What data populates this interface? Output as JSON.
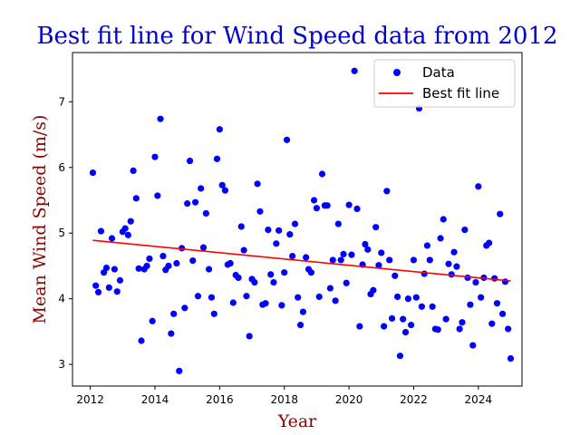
{
  "chart_data": {
    "type": "scatter",
    "title": "Best fit line for Wind Speed data from 2012",
    "xlabel": "Year",
    "ylabel": "Mean Wind Speed (m/s)",
    "xlim": [
      2011.45,
      2025.35
    ],
    "ylim": [
      2.67,
      7.75
    ],
    "x_ticks": [
      "2012",
      "2014",
      "2016",
      "2018",
      "2020",
      "2022",
      "2024"
    ],
    "y_ticks": [
      "3",
      "4",
      "5",
      "6",
      "7"
    ],
    "grid": false,
    "legend_position": "top-right",
    "colors": {
      "data": "#0000ff",
      "fit": "#ff0000",
      "title": "#0000cc",
      "axis_label": "#8b0000"
    },
    "series": [
      {
        "name": "Data",
        "kind": "scatter",
        "x": [
          2012.08,
          2012.17,
          2012.25,
          2012.33,
          2012.42,
          2012.5,
          2012.58,
          2012.67,
          2012.75,
          2012.83,
          2012.92,
          2013.0,
          2013.08,
          2013.17,
          2013.25,
          2013.33,
          2013.42,
          2013.5,
          2013.58,
          2013.67,
          2013.75,
          2013.83,
          2013.92,
          2014.0,
          2014.08,
          2014.17,
          2014.25,
          2014.33,
          2014.42,
          2014.5,
          2014.58,
          2014.67,
          2014.75,
          2014.83,
          2014.92,
          2015.0,
          2015.08,
          2015.17,
          2015.25,
          2015.33,
          2015.42,
          2015.5,
          2015.58,
          2015.67,
          2015.75,
          2015.83,
          2015.92,
          2016.0,
          2016.08,
          2016.17,
          2016.25,
          2016.33,
          2016.42,
          2016.5,
          2016.58,
          2016.67,
          2016.75,
          2016.83,
          2016.92,
          2017.0,
          2017.08,
          2017.17,
          2017.25,
          2017.33,
          2017.42,
          2017.5,
          2017.58,
          2017.67,
          2017.75,
          2017.83,
          2017.92,
          2018.0,
          2018.08,
          2018.17,
          2018.25,
          2018.33,
          2018.42,
          2018.5,
          2018.58,
          2018.67,
          2018.75,
          2018.83,
          2018.92,
          2019.0,
          2019.08,
          2019.17,
          2019.25,
          2019.33,
          2019.42,
          2019.5,
          2019.58,
          2019.67,
          2019.75,
          2019.83,
          2019.92,
          2020.0,
          2020.08,
          2020.17,
          2020.25,
          2020.33,
          2020.42,
          2020.5,
          2020.58,
          2020.67,
          2020.75,
          2020.83,
          2020.92,
          2021.0,
          2021.08,
          2021.17,
          2021.25,
          2021.33,
          2021.42,
          2021.5,
          2021.58,
          2021.67,
          2021.75,
          2021.83,
          2021.92,
          2022.0,
          2022.08,
          2022.17,
          2022.25,
          2022.33,
          2022.42,
          2022.5,
          2022.58,
          2022.67,
          2022.75,
          2022.83,
          2022.92,
          2023.0,
          2023.08,
          2023.17,
          2023.25,
          2023.33,
          2023.42,
          2023.5,
          2023.58,
          2023.67,
          2023.75,
          2023.83,
          2023.92,
          2024.0,
          2024.08,
          2024.17,
          2024.25,
          2024.33,
          2024.42,
          2024.5,
          2024.58,
          2024.67,
          2024.75,
          2024.83,
          2024.92,
          2025.0
        ],
        "y": [
          5.92,
          4.2,
          4.1,
          5.03,
          4.4,
          4.47,
          4.17,
          4.92,
          4.45,
          4.11,
          4.28,
          5.02,
          5.07,
          4.97,
          5.18,
          5.95,
          5.53,
          4.46,
          3.36,
          4.45,
          4.5,
          4.61,
          3.66,
          6.16,
          5.57,
          6.74,
          4.65,
          4.44,
          4.5,
          3.47,
          3.77,
          4.54,
          2.9,
          4.77,
          3.86,
          5.45,
          6.1,
          4.58,
          5.47,
          4.04,
          5.68,
          4.78,
          5.3,
          4.45,
          4.02,
          3.77,
          6.13,
          6.58,
          5.73,
          5.65,
          4.52,
          4.54,
          3.94,
          4.36,
          4.32,
          5.1,
          4.74,
          4.04,
          3.43,
          4.3,
          4.25,
          5.75,
          5.33,
          3.91,
          3.93,
          5.05,
          4.37,
          4.25,
          4.84,
          5.04,
          3.9,
          4.4,
          6.42,
          4.98,
          4.65,
          5.14,
          4.02,
          3.6,
          3.8,
          4.63,
          4.45,
          4.4,
          5.5,
          5.38,
          4.03,
          5.9,
          5.42,
          5.42,
          4.16,
          4.59,
          3.97,
          5.14,
          4.59,
          4.68,
          4.24,
          5.43,
          4.67,
          7.47,
          5.37,
          3.58,
          4.52,
          4.83,
          4.75,
          4.07,
          4.13,
          5.09,
          4.51,
          4.7,
          3.58,
          5.64,
          4.59,
          3.7,
          4.35,
          4.03,
          3.13,
          3.69,
          3.49,
          4.0,
          3.6,
          4.59,
          4.02,
          6.9,
          3.88,
          4.38,
          4.81,
          4.59,
          3.88,
          3.54,
          3.53,
          4.92,
          5.21,
          3.69,
          4.53,
          4.37,
          4.71,
          4.49,
          3.54,
          3.64,
          5.05,
          4.32,
          3.91,
          3.29,
          4.25,
          5.71,
          4.02,
          4.32,
          4.81,
          4.85,
          3.62,
          4.31,
          3.93,
          5.29,
          3.77,
          4.26,
          3.54,
          3.09
        ]
      },
      {
        "name": "Best fit line",
        "kind": "line",
        "x": [
          2012.08,
          2025.0
        ],
        "y": [
          4.89,
          4.27
        ]
      }
    ]
  }
}
